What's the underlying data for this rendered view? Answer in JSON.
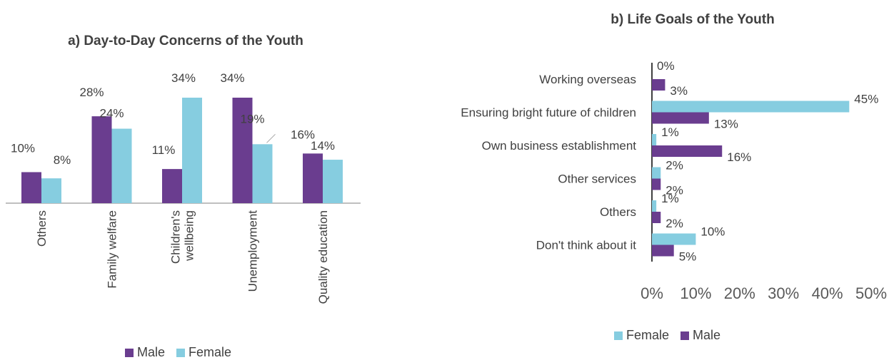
{
  "chart_data": [
    {
      "type": "bar",
      "orientation": "vertical",
      "title": "a) Day-to-Day Concerns of the Youth",
      "categories": [
        "Others",
        "Family welfare",
        "Children's wellbeing",
        "Unemployment",
        "Quality education"
      ],
      "category_lines": [
        [
          "Others"
        ],
        [
          "Family welfare"
        ],
        [
          "Children's",
          "wellbeing"
        ],
        [
          "Unemployment"
        ],
        [
          "Quality education"
        ]
      ],
      "series": [
        {
          "name": "Male",
          "values": [
            10,
            28,
            11,
            34,
            16
          ],
          "labels": [
            "10%",
            "28%",
            "11%",
            "34%",
            "16%"
          ],
          "color": "#6a3d8f"
        },
        {
          "name": "Female",
          "values": [
            8,
            24,
            34,
            19,
            14
          ],
          "labels": [
            "8%",
            "24%",
            "34%",
            "19%",
            "14%"
          ],
          "color": "#86cde0"
        }
      ],
      "ylim": [
        0,
        34
      ],
      "grid": false,
      "legend_position": "bottom"
    },
    {
      "type": "bar",
      "orientation": "horizontal",
      "title": "b) Life Goals of the Youth",
      "categories": [
        "Working overseas",
        "Ensuring bright future of children",
        "Own business establishment",
        "Other services",
        "Others",
        "Don't think about it"
      ],
      "series": [
        {
          "name": "Female",
          "values": [
            0,
            45,
            1,
            2,
            1,
            10
          ],
          "labels": [
            "0%",
            "45%",
            "1%",
            "2%",
            "1%",
            "10%"
          ],
          "color": "#86cde0"
        },
        {
          "name": "Male",
          "values": [
            3,
            13,
            16,
            2,
            2,
            5
          ],
          "labels": [
            "3%",
            "13%",
            "16%",
            "2%",
            "2%",
            "5%"
          ],
          "color": "#6a3d8f"
        }
      ],
      "xlim": [
        0,
        50
      ],
      "xticks": [
        "0%",
        "10%",
        "20%",
        "30%",
        "40%",
        "50%"
      ],
      "grid": false,
      "legend_position": "bottom"
    }
  ]
}
